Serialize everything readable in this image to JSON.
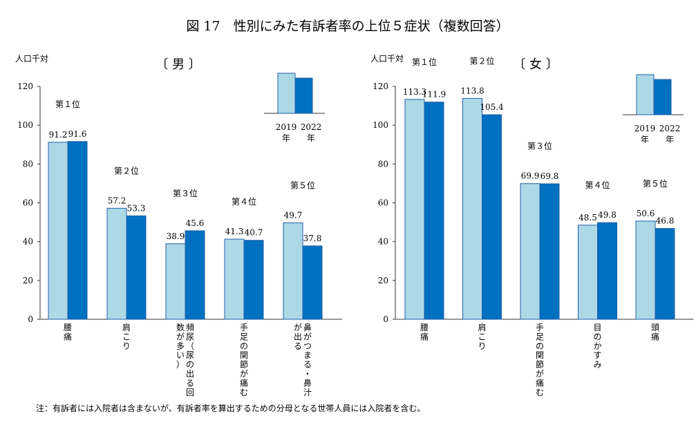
{
  "title": "図 17　性別にみた有訴者率の上位５症状（複数回答）",
  "note": "注：有訴者には入院者は含まないが、有訴者率を算出するための分母となる世帯人員には入院者を含む。",
  "colors": {
    "y2019": "#ADD8E6",
    "y2022": "#0070C0",
    "outline": "#1F5FA8"
  },
  "legend": {
    "labels": [
      "2019\n年",
      "2022\n年"
    ]
  },
  "chart_data": [
    {
      "type": "bar",
      "title": "〔 男 〕",
      "ylabel": "人口千対",
      "ylim": [
        0,
        120
      ],
      "yticks": [
        0,
        20,
        40,
        60,
        80,
        100,
        120
      ],
      "grid": false,
      "legend_position": "top-right",
      "series": [
        {
          "name": "2019年",
          "values": [
            91.2,
            57.2,
            38.9,
            41.3,
            49.7
          ]
        },
        {
          "name": "2022年",
          "values": [
            91.6,
            53.3,
            45.6,
            40.7,
            37.8
          ]
        }
      ],
      "ranks": [
        "第１位",
        "第２位",
        "第３位",
        "第４位",
        "第５位"
      ],
      "categories": [
        "腰痛",
        "肩こり",
        "頻尿（尿の出る回数が多い）",
        "手足の関節が痛む",
        "鼻がつまる・鼻汁が出る"
      ],
      "category_columns": [
        [
          "腰",
          "痛"
        ],
        [
          "肩",
          "こ",
          "り"
        ],
        [
          "頻",
          "尿",
          "（",
          "尿",
          "の",
          "出",
          "る",
          "回",
          "数",
          "が",
          "多",
          "い",
          "）"
        ],
        [
          "手",
          "足",
          "の",
          "関",
          "節",
          "が",
          "痛",
          "む"
        ],
        [
          "鼻",
          "が",
          "つ",
          "ま",
          "る",
          "・",
          "鼻",
          "汁",
          "が",
          "出",
          "る"
        ]
      ]
    },
    {
      "type": "bar",
      "title": "〔 女 〕",
      "ylabel": "人口千対",
      "ylim": [
        0,
        120
      ],
      "yticks": [
        0,
        20,
        40,
        60,
        80,
        100,
        120
      ],
      "grid": false,
      "legend_position": "top-right",
      "series": [
        {
          "name": "2019年",
          "values": [
            113.3,
            113.8,
            69.9,
            48.5,
            50.6
          ]
        },
        {
          "name": "2022年",
          "values": [
            111.9,
            105.4,
            69.8,
            49.8,
            46.8
          ]
        }
      ],
      "ranks": [
        "第１位",
        "第２位",
        "第３位",
        "第４位",
        "第５位"
      ],
      "categories": [
        "腰痛",
        "肩こり",
        "手足の関節が痛む",
        "目のかすみ",
        "頭痛"
      ],
      "category_columns": [
        [
          "腰",
          "痛"
        ],
        [
          "肩",
          "こ",
          "り"
        ],
        [
          "手",
          "足",
          "の",
          "関",
          "節",
          "が",
          "痛",
          "む"
        ],
        [
          "目",
          "の",
          "か",
          "す",
          "み"
        ],
        [
          "頭",
          "痛"
        ]
      ]
    }
  ]
}
